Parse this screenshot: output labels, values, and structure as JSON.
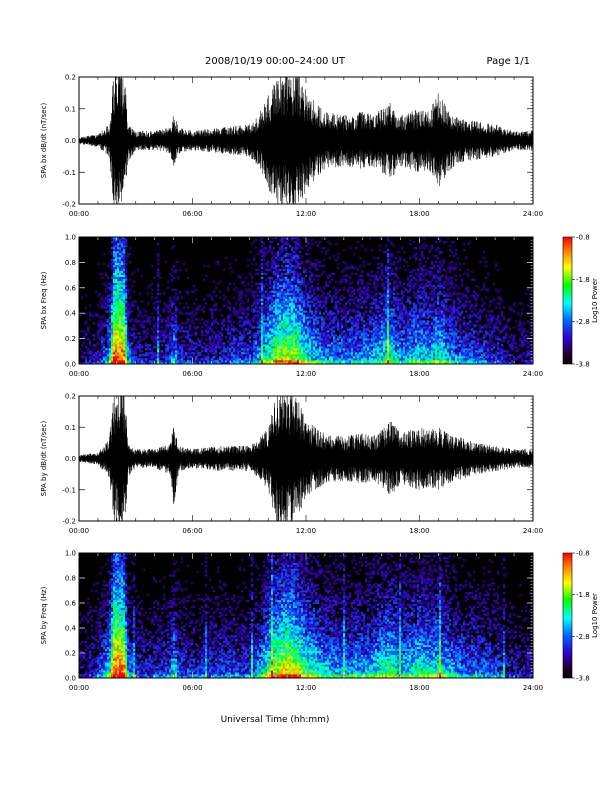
{
  "header": {
    "title": "2008/10/19   00:00–24:00 UT",
    "page": "Page 1/1"
  },
  "xlabel": "Universal Time (hh:mm)",
  "chart_data": [
    {
      "type": "line",
      "ylabel": "SPA bx dB/dt (nT/sec)",
      "xlim": [
        0,
        24
      ],
      "ylim": [
        -0.2,
        0.2
      ],
      "x_ticks": [
        "00:00",
        "06:00",
        "12:00",
        "18:00",
        "24:00"
      ],
      "y_ticks": [
        "-0.2",
        "-0.1",
        "0.0",
        "0.1",
        "0.2"
      ],
      "y_tick_values": [
        -0.2,
        -0.1,
        0.0,
        0.1,
        0.2
      ],
      "envelope": {
        "x": [
          0,
          1.0,
          1.6,
          1.85,
          2.0,
          2.4,
          2.6,
          3.0,
          4.0,
          4.8,
          5.0,
          5.3,
          6.0,
          7.5,
          9.0,
          9.5,
          10.0,
          10.5,
          11.0,
          11.5,
          12.0,
          12.5,
          13.0,
          14.0,
          15.0,
          15.5,
          16.0,
          16.5,
          17.0,
          17.5,
          18.0,
          18.5,
          19.0,
          19.5,
          20.0,
          21.0,
          22.0,
          23.0,
          24.0
        ],
        "upper": [
          0.01,
          0.02,
          0.05,
          0.22,
          0.22,
          0.22,
          0.05,
          0.03,
          0.03,
          0.04,
          0.08,
          0.04,
          0.03,
          0.04,
          0.05,
          0.08,
          0.14,
          0.22,
          0.22,
          0.22,
          0.16,
          0.12,
          0.09,
          0.08,
          0.09,
          0.08,
          0.1,
          0.12,
          0.08,
          0.09,
          0.1,
          0.09,
          0.15,
          0.1,
          0.07,
          0.06,
          0.05,
          0.03,
          0.03
        ],
        "lower": [
          -0.01,
          -0.02,
          -0.05,
          -0.22,
          -0.22,
          -0.22,
          -0.07,
          -0.03,
          -0.03,
          -0.04,
          -0.08,
          -0.04,
          -0.03,
          -0.04,
          -0.05,
          -0.08,
          -0.15,
          -0.22,
          -0.22,
          -0.22,
          -0.16,
          -0.12,
          -0.09,
          -0.08,
          -0.09,
          -0.08,
          -0.1,
          -0.12,
          -0.08,
          -0.09,
          -0.1,
          -0.09,
          -0.15,
          -0.1,
          -0.07,
          -0.06,
          -0.05,
          -0.03,
          -0.03
        ]
      }
    },
    {
      "type": "heatmap",
      "ylabel": "SPA bx Freq (Hz)",
      "colorbar_label": "Log10 Power",
      "colorbar_ticks": [
        "-0.8",
        "-1.8",
        "-2.8",
        "-3.8"
      ],
      "colorbar_values": [
        -0.8,
        -1.8,
        -2.8,
        -3.8
      ],
      "colorbar_colors": [
        "#ff0000",
        "#ff8800",
        "#ffff00",
        "#00ff00",
        "#00ffff",
        "#0066ff",
        "#3300cc",
        "#220033",
        "#000000"
      ],
      "xlim": [
        0,
        24
      ],
      "ylim": [
        0,
        1.0
      ],
      "x_ticks": [
        "00:00",
        "06:00",
        "12:00",
        "18:00",
        "24:00"
      ],
      "y_ticks": [
        "0.0",
        "0.2",
        "0.4",
        "0.6",
        "0.8",
        "1.0"
      ],
      "y_tick_values": [
        0.0,
        0.2,
        0.4,
        0.6,
        0.8,
        1.0
      ],
      "activity": {
        "x": [
          0,
          1.0,
          1.6,
          1.85,
          2.0,
          2.4,
          2.6,
          3.0,
          4.0,
          4.8,
          5.0,
          5.3,
          6.0,
          7.5,
          9.0,
          9.5,
          10.0,
          10.5,
          11.0,
          11.5,
          12.0,
          12.5,
          13.0,
          14.0,
          15.0,
          15.5,
          16.0,
          16.5,
          17.0,
          17.5,
          18.0,
          18.5,
          19.0,
          19.5,
          20.0,
          21.0,
          22.0,
          23.0,
          24.0
        ],
        "level": [
          0.15,
          0.25,
          0.45,
          1.0,
          1.0,
          0.95,
          0.4,
          0.25,
          0.25,
          0.3,
          0.5,
          0.3,
          0.25,
          0.3,
          0.35,
          0.45,
          0.6,
          0.75,
          0.8,
          0.75,
          0.6,
          0.5,
          0.45,
          0.4,
          0.45,
          0.45,
          0.55,
          0.6,
          0.45,
          0.5,
          0.55,
          0.5,
          0.6,
          0.5,
          0.4,
          0.35,
          0.3,
          0.2,
          0.2
        ]
      }
    },
    {
      "type": "line",
      "ylabel": "SPA by dB/dt (nT/sec)",
      "xlim": [
        0,
        24
      ],
      "ylim": [
        -0.2,
        0.2
      ],
      "x_ticks": [
        "00:00",
        "06:00",
        "12:00",
        "18:00",
        "24:00"
      ],
      "y_ticks": [
        "-0.2",
        "-0.1",
        "0.0",
        "0.1",
        "0.2"
      ],
      "y_tick_values": [
        -0.2,
        -0.1,
        0.0,
        0.1,
        0.2
      ],
      "envelope": {
        "x": [
          0,
          1.0,
          1.6,
          1.85,
          2.0,
          2.4,
          2.6,
          3.0,
          4.0,
          4.8,
          5.0,
          5.3,
          6.0,
          7.5,
          9.0,
          9.5,
          10.0,
          10.5,
          11.0,
          11.5,
          12.0,
          12.5,
          13.0,
          14.0,
          15.0,
          15.5,
          16.0,
          16.5,
          17.0,
          17.5,
          18.0,
          18.5,
          19.0,
          19.5,
          20.0,
          21.0,
          22.0,
          23.0,
          24.0
        ],
        "upper": [
          0.01,
          0.02,
          0.06,
          0.22,
          0.22,
          0.22,
          0.05,
          0.03,
          0.03,
          0.05,
          0.1,
          0.04,
          0.03,
          0.04,
          0.04,
          0.06,
          0.1,
          0.22,
          0.22,
          0.2,
          0.12,
          0.1,
          0.08,
          0.07,
          0.08,
          0.07,
          0.09,
          0.12,
          0.08,
          0.09,
          0.1,
          0.09,
          0.1,
          0.08,
          0.07,
          0.05,
          0.04,
          0.03,
          0.03
        ],
        "lower": [
          -0.01,
          -0.02,
          -0.06,
          -0.22,
          -0.22,
          -0.22,
          -0.06,
          -0.03,
          -0.03,
          -0.05,
          -0.15,
          -0.04,
          -0.03,
          -0.04,
          -0.04,
          -0.06,
          -0.1,
          -0.22,
          -0.22,
          -0.2,
          -0.12,
          -0.1,
          -0.08,
          -0.07,
          -0.08,
          -0.07,
          -0.09,
          -0.12,
          -0.08,
          -0.09,
          -0.1,
          -0.09,
          -0.1,
          -0.08,
          -0.07,
          -0.05,
          -0.04,
          -0.03,
          -0.03
        ]
      }
    },
    {
      "type": "heatmap",
      "ylabel": "SPA by Freq (Hz)",
      "colorbar_label": "Log10 Power",
      "colorbar_ticks": [
        "-0.8",
        "-1.8",
        "-2.8",
        "-3.8"
      ],
      "colorbar_values": [
        -0.8,
        -1.8,
        -2.8,
        -3.8
      ],
      "colorbar_colors": [
        "#ff0000",
        "#ff8800",
        "#ffff00",
        "#00ff00",
        "#00ffff",
        "#0066ff",
        "#3300cc",
        "#220033",
        "#000000"
      ],
      "xlim": [
        0,
        24
      ],
      "ylim": [
        0,
        1.0
      ],
      "x_ticks": [
        "00:00",
        "06:00",
        "12:00",
        "18:00",
        "24:00"
      ],
      "y_ticks": [
        "0.0",
        "0.2",
        "0.4",
        "0.6",
        "0.8",
        "1.0"
      ],
      "y_tick_values": [
        0.0,
        0.2,
        0.4,
        0.6,
        0.8,
        1.0
      ],
      "activity": {
        "x": [
          0,
          1.0,
          1.6,
          1.85,
          2.0,
          2.4,
          2.6,
          3.0,
          4.0,
          4.8,
          5.0,
          5.3,
          6.0,
          7.5,
          9.0,
          9.5,
          10.0,
          10.5,
          11.0,
          11.5,
          12.0,
          12.5,
          13.0,
          14.0,
          15.0,
          15.5,
          16.0,
          16.5,
          17.0,
          17.5,
          18.0,
          18.5,
          19.0,
          19.5,
          20.0,
          21.0,
          22.0,
          23.0,
          24.0
        ],
        "level": [
          0.2,
          0.3,
          0.55,
          1.0,
          1.0,
          0.95,
          0.45,
          0.3,
          0.3,
          0.35,
          0.55,
          0.35,
          0.3,
          0.35,
          0.35,
          0.45,
          0.65,
          0.8,
          0.85,
          0.8,
          0.65,
          0.6,
          0.5,
          0.45,
          0.5,
          0.5,
          0.6,
          0.65,
          0.5,
          0.55,
          0.6,
          0.55,
          0.6,
          0.5,
          0.45,
          0.4,
          0.35,
          0.25,
          0.25
        ]
      }
    }
  ]
}
